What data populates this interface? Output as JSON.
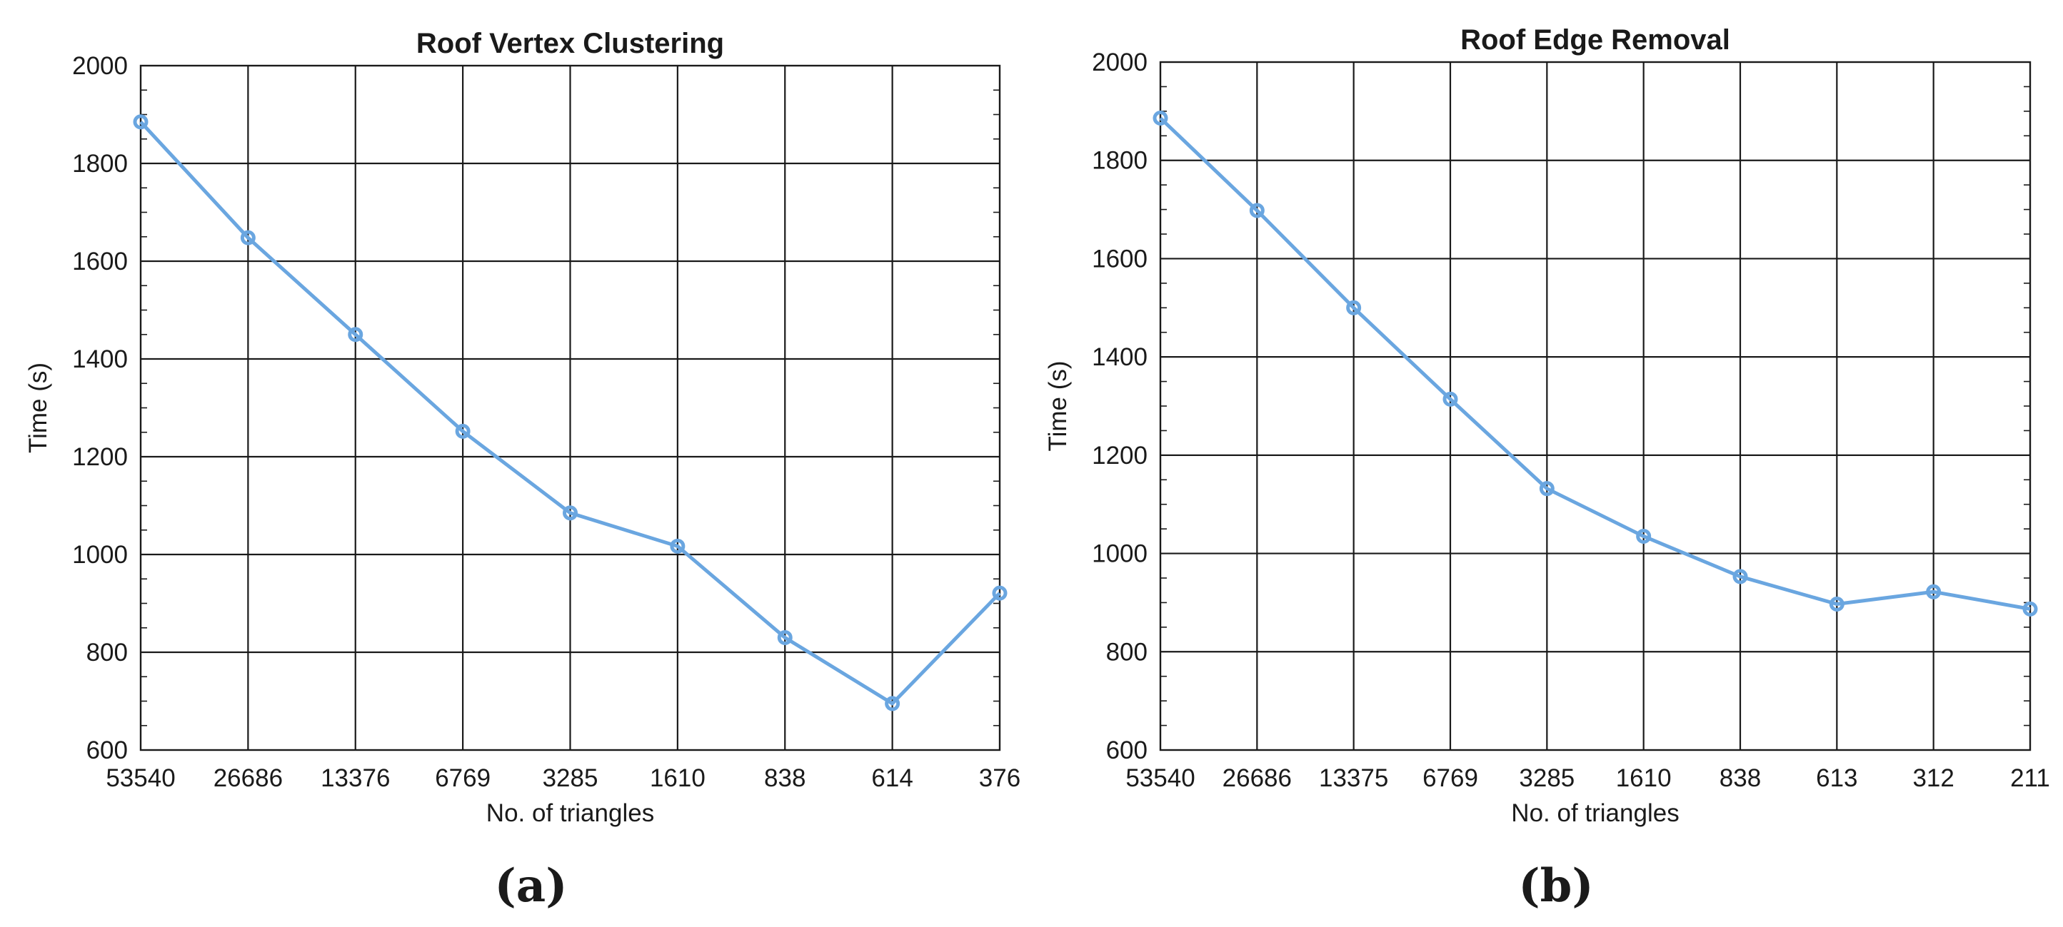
{
  "colors": {
    "series": "#6aa6e0",
    "axis": "#1a1a1a"
  },
  "chart_data": [
    {
      "type": "line",
      "title": "Roof Vertex Clustering",
      "xlabel": "No. of triangles",
      "ylabel": "Time (s)",
      "caption": "(a)",
      "categories": [
        "53540",
        "26686",
        "13376",
        "6769",
        "3285",
        "1610",
        "838",
        "614",
        "376"
      ],
      "values": [
        1885,
        1648,
        1450,
        1252,
        1085,
        1017,
        830,
        695,
        921
      ],
      "ylim": [
        600,
        2000
      ],
      "yticks": [
        "600",
        "800",
        "1000",
        "1200",
        "1400",
        "1600",
        "1800",
        "2000"
      ],
      "grid": true
    },
    {
      "type": "line",
      "title": "Roof Edge Removal",
      "xlabel": "No. of triangles",
      "ylabel": "Time (s)",
      "caption": "(b)",
      "categories": [
        "53540",
        "26686",
        "13375",
        "6769",
        "3285",
        "1610",
        "838",
        "613",
        "312",
        "211"
      ],
      "values": [
        1886,
        1698,
        1500,
        1314,
        1132,
        1035,
        953,
        897,
        922,
        887
      ],
      "ylim": [
        600,
        2000
      ],
      "yticks": [
        "600",
        "800",
        "1000",
        "1200",
        "1400",
        "1600",
        "1800",
        "2000"
      ],
      "grid": true
    }
  ]
}
